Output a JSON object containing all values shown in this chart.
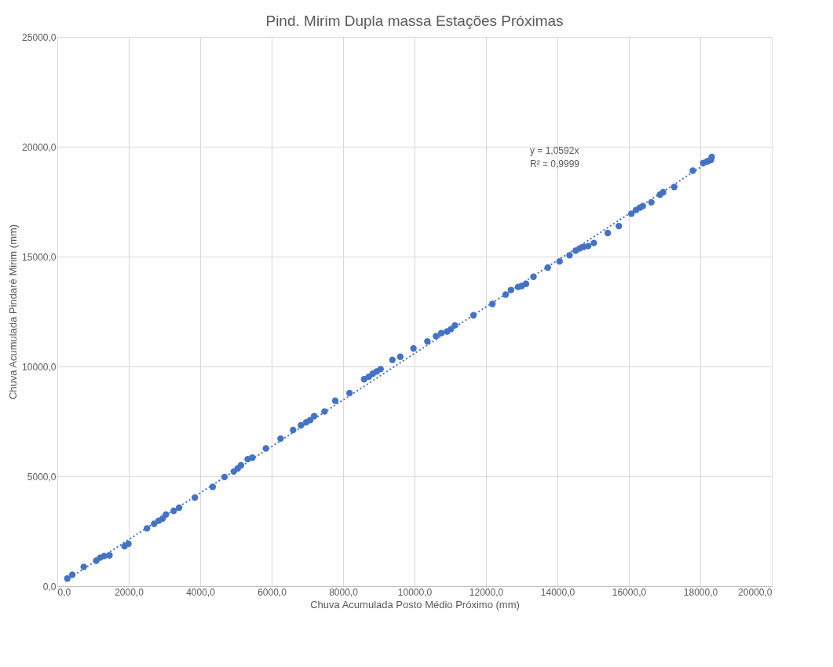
{
  "chart_data": {
    "type": "scatter",
    "title": "Pind. Mirim Dupla massa Estações Próximas",
    "xlabel": "Chuva Acumulada Posto Médio Próximo (mm)",
    "ylabel": "Chuva Acumulada Pindaré Mirim (mm)",
    "x": [
      280,
      420,
      740,
      1090,
      1200,
      1310,
      1460,
      1880,
      1990,
      2510,
      2710,
      2840,
      2950,
      3040,
      3260,
      3410,
      3850,
      4350,
      4680,
      4940,
      5050,
      5140,
      5330,
      5460,
      5840,
      6250,
      6600,
      6820,
      6970,
      7080,
      7190,
      7480,
      7780,
      8180,
      8590,
      8720,
      8830,
      8940,
      9050,
      9380,
      9600,
      9970,
      10360,
      10600,
      10750,
      10910,
      11020,
      11130,
      11650,
      12180,
      12550,
      12700,
      12900,
      13000,
      13120,
      13330,
      13730,
      14060,
      14340,
      14510,
      14620,
      14730,
      14860,
      15020,
      15410,
      15720,
      16070,
      16200,
      16310,
      16390,
      16630,
      16870,
      16960,
      17270,
      17790,
      18080,
      18190,
      18250,
      18300,
      18320
    ],
    "series": [
      {
        "color": "#4472c4",
        "marker": "circle",
        "values": [
          350,
          520,
          880,
          1160,
          1300,
          1370,
          1400,
          1820,
          1930,
          2630,
          2840,
          2980,
          3080,
          3260,
          3430,
          3570,
          4030,
          4520,
          4970,
          5220,
          5360,
          5500,
          5780,
          5850,
          6270,
          6720,
          7110,
          7320,
          7460,
          7560,
          7740,
          7950,
          8440,
          8790,
          9420,
          9530,
          9670,
          9770,
          9880,
          10300,
          10440,
          10820,
          11140,
          11380,
          11520,
          11590,
          11700,
          11870,
          12330,
          12850,
          13270,
          13480,
          13620,
          13660,
          13760,
          14080,
          14500,
          14780,
          15060,
          15270,
          15370,
          15440,
          15480,
          15620,
          16070,
          16390,
          16950,
          17120,
          17230,
          17300,
          17470,
          17820,
          17930,
          18170,
          18910,
          19260,
          19330,
          19370,
          19400,
          19540
        ]
      },
      {
        "type": "line",
        "color": "#4472c4",
        "line_style": "dotted",
        "marker": "none",
        "x": [
          280,
          18320
        ],
        "values": [
          300,
          19400
        ]
      }
    ],
    "xlim": [
      0,
      20000
    ],
    "ylim": [
      0,
      25000
    ],
    "xticks": [
      {
        "value": 0,
        "label": "0,0"
      },
      {
        "value": 2000,
        "label": "2000,0"
      },
      {
        "value": 4000,
        "label": "4000,0"
      },
      {
        "value": 6000,
        "label": "6000,0"
      },
      {
        "value": 8000,
        "label": "8000,0"
      },
      {
        "value": 10000,
        "label": "10000,0"
      },
      {
        "value": 12000,
        "label": "12000,0"
      },
      {
        "value": 14000,
        "label": "14000,0"
      },
      {
        "value": 16000,
        "label": "16000,0"
      },
      {
        "value": 18000,
        "label": "18000,0"
      },
      {
        "value": 20000,
        "label": "20000,0"
      }
    ],
    "yticks": [
      {
        "value": 0,
        "label": "0,0"
      },
      {
        "value": 5000,
        "label": "5000,0"
      },
      {
        "value": 10000,
        "label": "10000,0"
      },
      {
        "value": 15000,
        "label": "15000,0"
      },
      {
        "value": 20000,
        "label": "20000,0"
      },
      {
        "value": 25000,
        "label": "25000,0"
      }
    ],
    "annotations": [
      "y = 1,0592x",
      "R² = 0,9999"
    ],
    "grid": true
  }
}
